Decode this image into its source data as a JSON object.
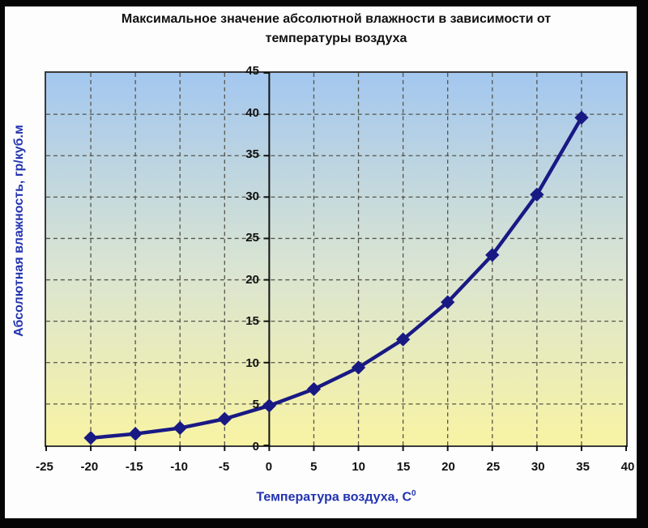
{
  "title": {
    "line1": "Максимальное значение абсолютной влажности в зависимости от",
    "line2": "температуры воздуха"
  },
  "axes": {
    "y_label": "Абсолютная влажность, гр/куб.м",
    "x_label": "Температура воздуха, С",
    "x_label_sup": "0"
  },
  "colors": {
    "frame": "#060606",
    "surface": "#fdfdfd",
    "title_text": "#111111",
    "tick_text": "#111111",
    "axis_title_text": "#2233b0",
    "grid": "#55544a",
    "plot_border": "#3a3a3a",
    "axis_line": "#111111",
    "line": "#191984",
    "plot_bg_top": "#a3c7ef",
    "plot_bg_mid": "#d9e4d2",
    "plot_bg_bottom": "#f8f3a4"
  },
  "chart_data": {
    "type": "line",
    "title": "Максимальное значение абсолютной влажности в зависимости от температуры воздуха",
    "xlabel": "Температура воздуха, С⁰",
    "ylabel": "Абсолютная влажность, гр/куб.м",
    "x": [
      -20,
      -15,
      -10,
      -5,
      0,
      5,
      10,
      15,
      20,
      25,
      30,
      35
    ],
    "y": [
      0.9,
      1.4,
      2.1,
      3.2,
      4.8,
      6.8,
      9.4,
      12.8,
      17.3,
      23.0,
      30.3,
      39.6
    ],
    "xlim": [
      -25,
      40
    ],
    "ylim": [
      0,
      45
    ],
    "x_ticks": [
      -25,
      -20,
      -15,
      -10,
      -5,
      0,
      5,
      10,
      15,
      20,
      25,
      30,
      35,
      40
    ],
    "y_ticks": [
      0,
      5,
      10,
      15,
      20,
      25,
      30,
      35,
      40,
      45
    ],
    "value_axis_at_x": 0,
    "grid": true,
    "legend": false,
    "marker": "diamond"
  }
}
